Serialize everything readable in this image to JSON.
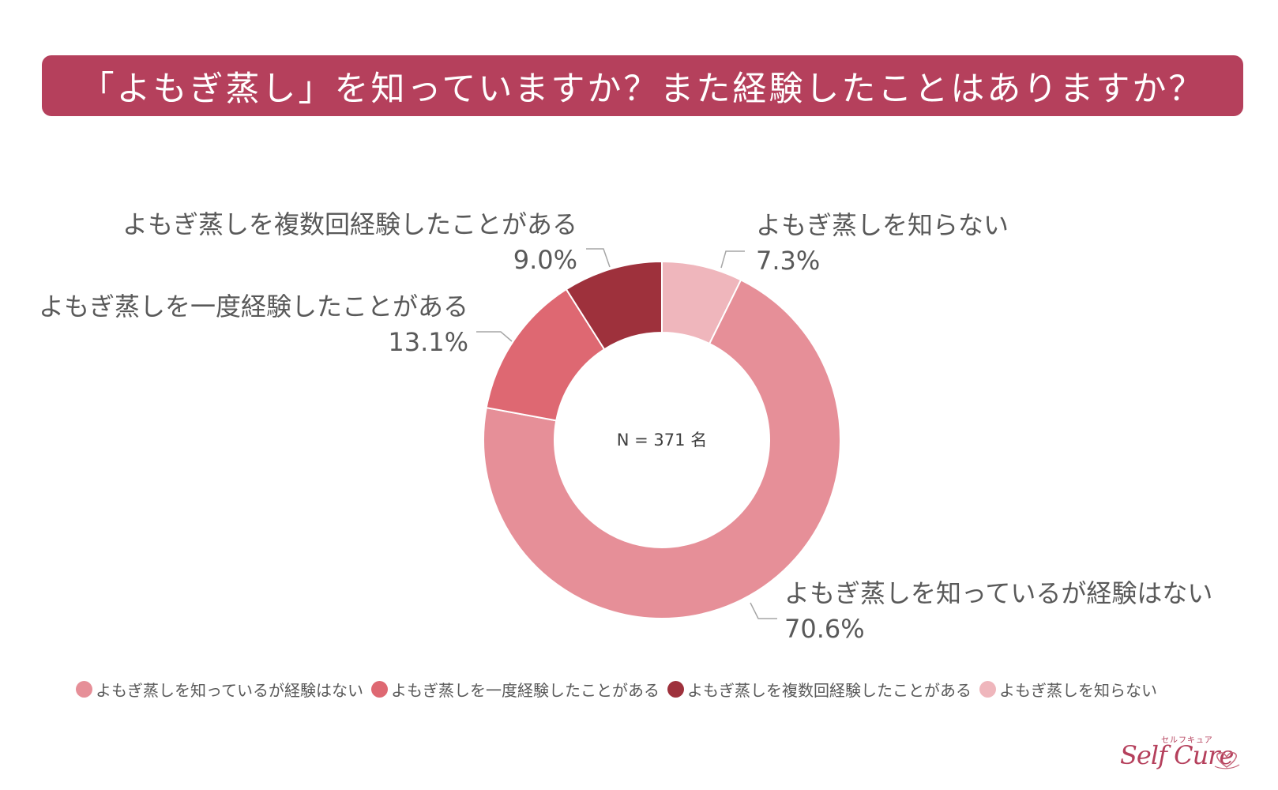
{
  "title": "「よもぎ蒸し」を知っていますか？また経験したことはありますか？",
  "colors": {
    "banner": "#b5405c",
    "text": "#595959",
    "leader": "#a6a6a6"
  },
  "chart_data": {
    "type": "pie",
    "variant": "donut",
    "title": "「よもぎ蒸し」を知っていますか？また経験したことはありますか？",
    "center_label": "N = 371 名",
    "legend_position": "bottom",
    "series": [
      {
        "name": "よもぎ蒸しを知らない",
        "value": 7.3,
        "value_label": "7.3%",
        "color": "#efb6bc"
      },
      {
        "name": "よもぎ蒸しを知っているが経験はない",
        "value": 70.6,
        "value_label": "70.6%",
        "color": "#e68f98"
      },
      {
        "name": "よもぎ蒸しを一度経験したことがある",
        "value": 13.1,
        "value_label": "13.1%",
        "color": "#de6872"
      },
      {
        "name": "よもぎ蒸しを複数回経験したことがある",
        "value": 9.0,
        "value_label": "9.0%",
        "color": "#9e313c"
      }
    ],
    "legend": [
      {
        "name": "よもぎ蒸しを知っているが経験はない",
        "color": "#e68f98"
      },
      {
        "name": "よもぎ蒸しを一度経験したことがある",
        "color": "#de6872"
      },
      {
        "name": "よもぎ蒸しを複数回経験したことがある",
        "color": "#9e313c"
      },
      {
        "name": "よもぎ蒸しを知らない",
        "color": "#efb6bc"
      }
    ]
  },
  "logo": {
    "kana": "セルフキュア",
    "script": "Self Cure"
  }
}
